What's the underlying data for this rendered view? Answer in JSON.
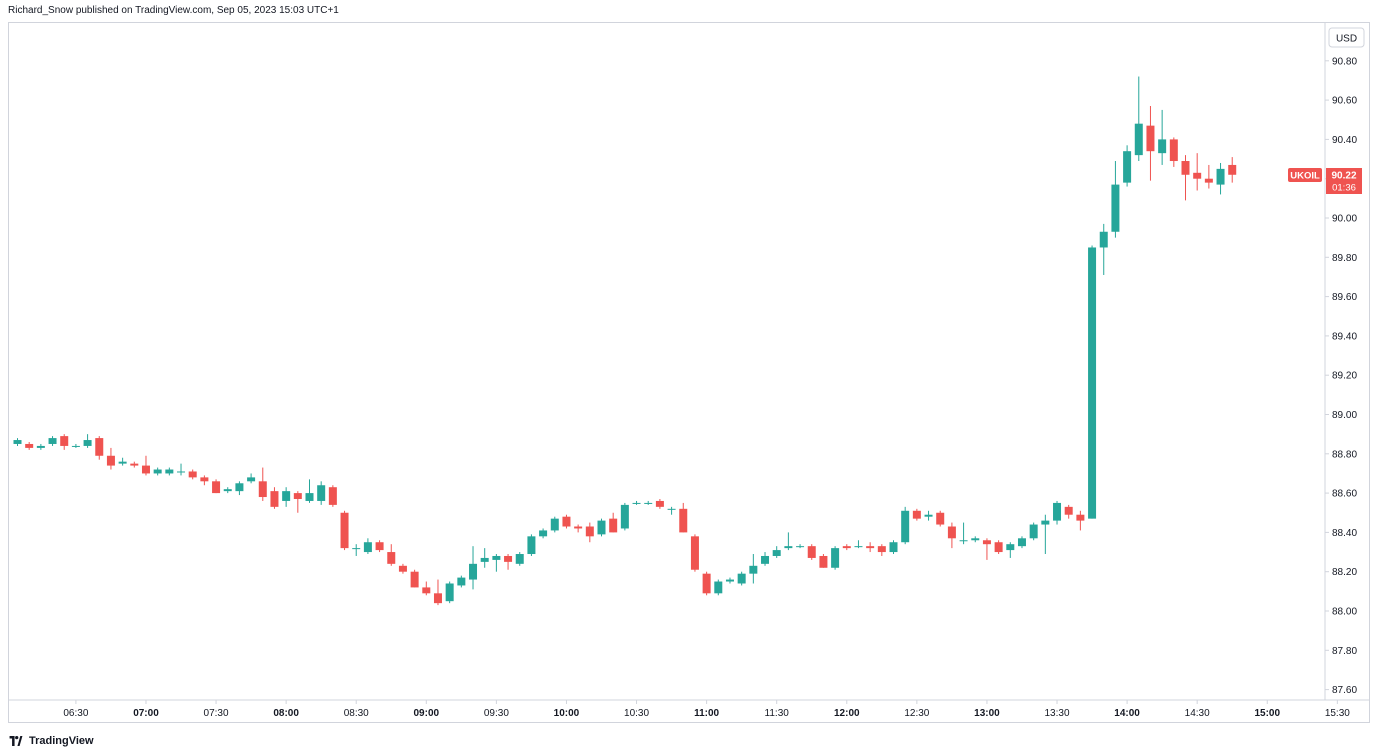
{
  "header": {
    "published_line": "Richard_Snow published on TradingView.com, Sep 05, 2023 15:03 UTC+1"
  },
  "branding": {
    "label": "TradingView",
    "logo_icon": "tradingview-logo-icon"
  },
  "colors": {
    "up": "#26a69a",
    "down": "#ef5350",
    "axis_text": "#131722",
    "border": "#d1d4dc"
  },
  "chart_data": {
    "type": "candlestick",
    "symbol": "UKOIL",
    "currency": "USD",
    "interval_minutes": 5,
    "last_price": "90.22",
    "countdown": "01:36",
    "ylim": [
      87.52,
      90.92
    ],
    "y_ticks": [
      "87.60",
      "87.80",
      "88.00",
      "88.20",
      "88.40",
      "88.60",
      "88.80",
      "89.00",
      "89.20",
      "89.40",
      "89.60",
      "89.80",
      "90.00",
      "90.20",
      "90.40",
      "90.60",
      "90.80"
    ],
    "x_ticks": [
      {
        "label": "06:30",
        "bold": false
      },
      {
        "label": "07:00",
        "bold": true
      },
      {
        "label": "07:30",
        "bold": false
      },
      {
        "label": "08:00",
        "bold": true
      },
      {
        "label": "08:30",
        "bold": false
      },
      {
        "label": "09:00",
        "bold": true
      },
      {
        "label": "09:30",
        "bold": false
      },
      {
        "label": "10:00",
        "bold": true
      },
      {
        "label": "10:30",
        "bold": false
      },
      {
        "label": "11:00",
        "bold": true
      },
      {
        "label": "11:30",
        "bold": false
      },
      {
        "label": "12:00",
        "bold": true
      },
      {
        "label": "12:30",
        "bold": false
      },
      {
        "label": "13:00",
        "bold": true
      },
      {
        "label": "13:30",
        "bold": false
      },
      {
        "label": "14:00",
        "bold": true
      },
      {
        "label": "14:30",
        "bold": false
      },
      {
        "label": "15:00",
        "bold": true
      },
      {
        "label": "15:30",
        "bold": false
      }
    ],
    "candles": [
      {
        "t": "06:05",
        "o": 88.85,
        "h": 88.88,
        "l": 88.84,
        "c": 88.87
      },
      {
        "t": "06:10",
        "o": 88.85,
        "h": 88.86,
        "l": 88.82,
        "c": 88.83
      },
      {
        "t": "06:15",
        "o": 88.83,
        "h": 88.85,
        "l": 88.82,
        "c": 88.84
      },
      {
        "t": "06:20",
        "o": 88.85,
        "h": 88.89,
        "l": 88.84,
        "c": 88.88
      },
      {
        "t": "06:25",
        "o": 88.89,
        "h": 88.9,
        "l": 88.82,
        "c": 88.84
      },
      {
        "t": "06:30",
        "o": 88.84,
        "h": 88.85,
        "l": 88.83,
        "c": 88.84
      },
      {
        "t": "06:35",
        "o": 88.84,
        "h": 88.9,
        "l": 88.83,
        "c": 88.87
      },
      {
        "t": "06:40",
        "o": 88.88,
        "h": 88.89,
        "l": 88.77,
        "c": 88.79
      },
      {
        "t": "06:45",
        "o": 88.79,
        "h": 88.83,
        "l": 88.72,
        "c": 88.74
      },
      {
        "t": "06:50",
        "o": 88.75,
        "h": 88.78,
        "l": 88.74,
        "c": 88.76
      },
      {
        "t": "06:55",
        "o": 88.75,
        "h": 88.76,
        "l": 88.73,
        "c": 88.74
      },
      {
        "t": "07:00",
        "o": 88.74,
        "h": 88.79,
        "l": 88.69,
        "c": 88.7
      },
      {
        "t": "07:05",
        "o": 88.7,
        "h": 88.73,
        "l": 88.69,
        "c": 88.72
      },
      {
        "t": "07:10",
        "o": 88.7,
        "h": 88.73,
        "l": 88.69,
        "c": 88.72
      },
      {
        "t": "07:15",
        "o": 88.71,
        "h": 88.75,
        "l": 88.69,
        "c": 88.71
      },
      {
        "t": "07:20",
        "o": 88.71,
        "h": 88.72,
        "l": 88.67,
        "c": 88.68
      },
      {
        "t": "07:25",
        "o": 88.68,
        "h": 88.69,
        "l": 88.64,
        "c": 88.66
      },
      {
        "t": "07:30",
        "o": 88.66,
        "h": 88.67,
        "l": 88.6,
        "c": 88.6
      },
      {
        "t": "07:35",
        "o": 88.61,
        "h": 88.63,
        "l": 88.6,
        "c": 88.62
      },
      {
        "t": "07:40",
        "o": 88.61,
        "h": 88.66,
        "l": 88.59,
        "c": 88.65
      },
      {
        "t": "07:45",
        "o": 88.66,
        "h": 88.7,
        "l": 88.65,
        "c": 88.68
      },
      {
        "t": "07:50",
        "o": 88.66,
        "h": 88.73,
        "l": 88.56,
        "c": 88.58
      },
      {
        "t": "07:55",
        "o": 88.61,
        "h": 88.63,
        "l": 88.52,
        "c": 88.53
      },
      {
        "t": "08:00",
        "o": 88.56,
        "h": 88.63,
        "l": 88.53,
        "c": 88.61
      },
      {
        "t": "08:05",
        "o": 88.6,
        "h": 88.61,
        "l": 88.5,
        "c": 88.57
      },
      {
        "t": "08:10",
        "o": 88.56,
        "h": 88.67,
        "l": 88.55,
        "c": 88.6
      },
      {
        "t": "08:15",
        "o": 88.56,
        "h": 88.66,
        "l": 88.54,
        "c": 88.64
      },
      {
        "t": "08:20",
        "o": 88.63,
        "h": 88.64,
        "l": 88.53,
        "c": 88.54
      },
      {
        "t": "08:25",
        "o": 88.5,
        "h": 88.51,
        "l": 88.31,
        "c": 88.32
      },
      {
        "t": "08:30",
        "o": 88.32,
        "h": 88.34,
        "l": 88.28,
        "c": 88.32
      },
      {
        "t": "08:35",
        "o": 88.3,
        "h": 88.37,
        "l": 88.29,
        "c": 88.35
      },
      {
        "t": "08:40",
        "o": 88.35,
        "h": 88.36,
        "l": 88.3,
        "c": 88.31
      },
      {
        "t": "08:45",
        "o": 88.3,
        "h": 88.34,
        "l": 88.23,
        "c": 88.24
      },
      {
        "t": "08:50",
        "o": 88.23,
        "h": 88.24,
        "l": 88.19,
        "c": 88.2
      },
      {
        "t": "08:55",
        "o": 88.2,
        "h": 88.21,
        "l": 88.12,
        "c": 88.12
      },
      {
        "t": "09:00",
        "o": 88.12,
        "h": 88.15,
        "l": 88.08,
        "c": 88.09
      },
      {
        "t": "09:05",
        "o": 88.09,
        "h": 88.16,
        "l": 88.03,
        "c": 88.04
      },
      {
        "t": "09:10",
        "o": 88.05,
        "h": 88.15,
        "l": 88.04,
        "c": 88.14
      },
      {
        "t": "09:15",
        "o": 88.13,
        "h": 88.18,
        "l": 88.12,
        "c": 88.17
      },
      {
        "t": "09:20",
        "o": 88.16,
        "h": 88.33,
        "l": 88.11,
        "c": 88.24
      },
      {
        "t": "09:25",
        "o": 88.25,
        "h": 88.32,
        "l": 88.22,
        "c": 88.27
      },
      {
        "t": "09:30",
        "o": 88.26,
        "h": 88.29,
        "l": 88.2,
        "c": 88.28
      },
      {
        "t": "09:35",
        "o": 88.28,
        "h": 88.29,
        "l": 88.21,
        "c": 88.25
      },
      {
        "t": "09:40",
        "o": 88.24,
        "h": 88.3,
        "l": 88.23,
        "c": 88.29
      },
      {
        "t": "09:45",
        "o": 88.29,
        "h": 88.39,
        "l": 88.28,
        "c": 88.38
      },
      {
        "t": "09:50",
        "o": 88.38,
        "h": 88.42,
        "l": 88.37,
        "c": 88.41
      },
      {
        "t": "09:55",
        "o": 88.41,
        "h": 88.48,
        "l": 88.4,
        "c": 88.47
      },
      {
        "t": "10:00",
        "o": 88.48,
        "h": 88.49,
        "l": 88.42,
        "c": 88.43
      },
      {
        "t": "10:05",
        "o": 88.43,
        "h": 88.44,
        "l": 88.4,
        "c": 88.42
      },
      {
        "t": "10:10",
        "o": 88.43,
        "h": 88.45,
        "l": 88.35,
        "c": 88.38
      },
      {
        "t": "10:15",
        "o": 88.39,
        "h": 88.47,
        "l": 88.38,
        "c": 88.46
      },
      {
        "t": "10:20",
        "o": 88.47,
        "h": 88.5,
        "l": 88.4,
        "c": 88.4
      },
      {
        "t": "10:25",
        "o": 88.42,
        "h": 88.55,
        "l": 88.41,
        "c": 88.54
      },
      {
        "t": "10:30",
        "o": 88.55,
        "h": 88.56,
        "l": 88.54,
        "c": 88.55
      },
      {
        "t": "10:35",
        "o": 88.55,
        "h": 88.56,
        "l": 88.54,
        "c": 88.55
      },
      {
        "t": "10:40",
        "o": 88.56,
        "h": 88.57,
        "l": 88.52,
        "c": 88.53
      },
      {
        "t": "10:45",
        "o": 88.52,
        "h": 88.53,
        "l": 88.49,
        "c": 88.52
      },
      {
        "t": "10:50",
        "o": 88.52,
        "h": 88.55,
        "l": 88.4,
        "c": 88.4
      },
      {
        "t": "10:55",
        "o": 88.38,
        "h": 88.39,
        "l": 88.2,
        "c": 88.21
      },
      {
        "t": "11:00",
        "o": 88.19,
        "h": 88.2,
        "l": 88.08,
        "c": 88.09
      },
      {
        "t": "11:05",
        "o": 88.09,
        "h": 88.16,
        "l": 88.08,
        "c": 88.15
      },
      {
        "t": "11:10",
        "o": 88.15,
        "h": 88.17,
        "l": 88.14,
        "c": 88.16
      },
      {
        "t": "11:15",
        "o": 88.14,
        "h": 88.2,
        "l": 88.13,
        "c": 88.19
      },
      {
        "t": "11:20",
        "o": 88.19,
        "h": 88.29,
        "l": 88.14,
        "c": 88.23
      },
      {
        "t": "11:25",
        "o": 88.24,
        "h": 88.3,
        "l": 88.23,
        "c": 88.28
      },
      {
        "t": "11:30",
        "o": 88.28,
        "h": 88.33,
        "l": 88.27,
        "c": 88.31
      },
      {
        "t": "11:35",
        "o": 88.32,
        "h": 88.4,
        "l": 88.31,
        "c": 88.33
      },
      {
        "t": "11:40",
        "o": 88.33,
        "h": 88.34,
        "l": 88.32,
        "c": 88.33
      },
      {
        "t": "11:45",
        "o": 88.33,
        "h": 88.34,
        "l": 88.26,
        "c": 88.27
      },
      {
        "t": "11:50",
        "o": 88.28,
        "h": 88.29,
        "l": 88.22,
        "c": 88.22
      },
      {
        "t": "11:55",
        "o": 88.22,
        "h": 88.33,
        "l": 88.21,
        "c": 88.32
      },
      {
        "t": "12:00",
        "o": 88.33,
        "h": 88.34,
        "l": 88.31,
        "c": 88.32
      },
      {
        "t": "12:05",
        "o": 88.33,
        "h": 88.36,
        "l": 88.32,
        "c": 88.33
      },
      {
        "t": "12:10",
        "o": 88.33,
        "h": 88.35,
        "l": 88.3,
        "c": 88.32
      },
      {
        "t": "12:15",
        "o": 88.33,
        "h": 88.34,
        "l": 88.28,
        "c": 88.3
      },
      {
        "t": "12:20",
        "o": 88.3,
        "h": 88.36,
        "l": 88.29,
        "c": 88.35
      },
      {
        "t": "12:25",
        "o": 88.35,
        "h": 88.53,
        "l": 88.34,
        "c": 88.51
      },
      {
        "t": "12:30",
        "o": 88.51,
        "h": 88.52,
        "l": 88.46,
        "c": 88.47
      },
      {
        "t": "12:35",
        "o": 88.48,
        "h": 88.51,
        "l": 88.46,
        "c": 88.49
      },
      {
        "t": "12:40",
        "o": 88.5,
        "h": 88.51,
        "l": 88.43,
        "c": 88.44
      },
      {
        "t": "12:45",
        "o": 88.43,
        "h": 88.45,
        "l": 88.32,
        "c": 88.37
      },
      {
        "t": "12:50",
        "o": 88.36,
        "h": 88.45,
        "l": 88.34,
        "c": 88.36
      },
      {
        "t": "12:55",
        "o": 88.36,
        "h": 88.38,
        "l": 88.35,
        "c": 88.37
      },
      {
        "t": "13:00",
        "o": 88.36,
        "h": 88.37,
        "l": 88.26,
        "c": 88.34
      },
      {
        "t": "13:05",
        "o": 88.35,
        "h": 88.36,
        "l": 88.29,
        "c": 88.3
      },
      {
        "t": "13:10",
        "o": 88.31,
        "h": 88.35,
        "l": 88.27,
        "c": 88.34
      },
      {
        "t": "13:15",
        "o": 88.33,
        "h": 88.38,
        "l": 88.32,
        "c": 88.37
      },
      {
        "t": "13:20",
        "o": 88.37,
        "h": 88.45,
        "l": 88.36,
        "c": 88.44
      },
      {
        "t": "13:25",
        "o": 88.44,
        "h": 88.49,
        "l": 88.29,
        "c": 88.46
      },
      {
        "t": "13:30",
        "o": 88.46,
        "h": 88.56,
        "l": 88.44,
        "c": 88.55
      },
      {
        "t": "13:35",
        "o": 88.53,
        "h": 88.54,
        "l": 88.47,
        "c": 88.49
      },
      {
        "t": "13:40",
        "o": 88.49,
        "h": 88.51,
        "l": 88.41,
        "c": 88.46
      },
      {
        "t": "13:45",
        "o": 88.47,
        "h": 89.86,
        "l": 88.47,
        "c": 89.85
      },
      {
        "t": "13:50",
        "o": 89.85,
        "h": 89.97,
        "l": 89.71,
        "c": 89.93
      },
      {
        "t": "13:55",
        "o": 89.93,
        "h": 90.29,
        "l": 89.9,
        "c": 90.17
      },
      {
        "t": "14:00",
        "o": 90.18,
        "h": 90.37,
        "l": 90.16,
        "c": 90.34
      },
      {
        "t": "14:05",
        "o": 90.32,
        "h": 90.72,
        "l": 90.29,
        "c": 90.48
      },
      {
        "t": "14:10",
        "o": 90.47,
        "h": 90.57,
        "l": 90.19,
        "c": 90.34
      },
      {
        "t": "14:15",
        "o": 90.33,
        "h": 90.55,
        "l": 90.27,
        "c": 90.4
      },
      {
        "t": "14:20",
        "o": 90.4,
        "h": 90.41,
        "l": 90.26,
        "c": 90.29
      },
      {
        "t": "14:25",
        "o": 90.29,
        "h": 90.32,
        "l": 90.09,
        "c": 90.22
      },
      {
        "t": "14:30",
        "o": 90.23,
        "h": 90.33,
        "l": 90.14,
        "c": 90.2
      },
      {
        "t": "14:35",
        "o": 90.2,
        "h": 90.27,
        "l": 90.15,
        "c": 90.18
      },
      {
        "t": "14:40",
        "o": 90.17,
        "h": 90.28,
        "l": 90.12,
        "c": 90.25
      },
      {
        "t": "14:45",
        "o": 90.27,
        "h": 90.31,
        "l": 90.18,
        "c": 90.22
      }
    ]
  }
}
